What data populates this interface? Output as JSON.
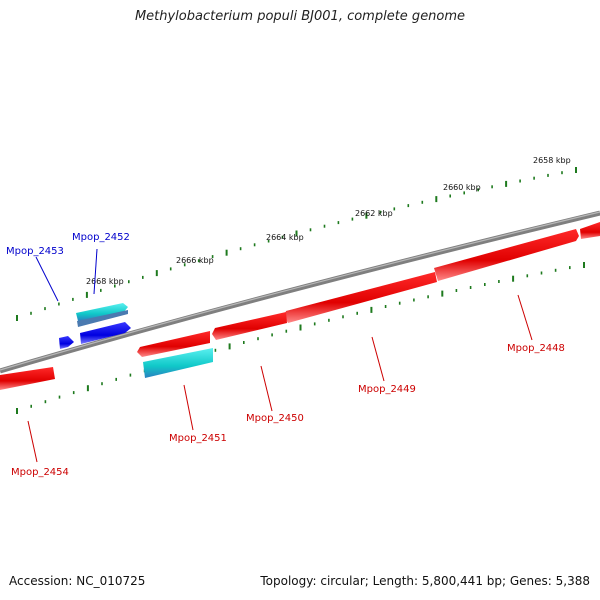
{
  "title": "Methylobacterium populi BJ001, complete genome",
  "accession_text": "Accession: NC_010725",
  "summary_text": "Topology: circular; Length: 5,800,441 bp; Genes: 5,388",
  "colors": {
    "backbone": "#7f7f7f",
    "tick": "#1e7a1e",
    "forward_gene": "#0000ee",
    "forward_gene_alt": "#22d8d8",
    "reverse_gene": "#ee0000",
    "reverse_gene_alt": "#22c0c0",
    "forward_label": "#0000cc",
    "reverse_label": "#cc0000"
  },
  "scale_labels": [
    {
      "text": "2658 kbp"
    },
    {
      "text": "2660 kbp"
    },
    {
      "text": "2662 kbp"
    },
    {
      "text": "2664 kbp"
    },
    {
      "text": "2666 kbp"
    },
    {
      "text": "2668 kbp"
    }
  ],
  "genes": [
    {
      "label": "Mpop_2448",
      "strand": "reverse"
    },
    {
      "label": "Mpop_2449",
      "strand": "reverse"
    },
    {
      "label": "Mpop_2450",
      "strand": "reverse"
    },
    {
      "label": "Mpop_2451",
      "strand": "reverse"
    },
    {
      "label": "Mpop_2452",
      "strand": "forward"
    },
    {
      "label": "Mpop_2453",
      "strand": "forward"
    },
    {
      "label": "Mpop_2454",
      "strand": "reverse"
    }
  ]
}
